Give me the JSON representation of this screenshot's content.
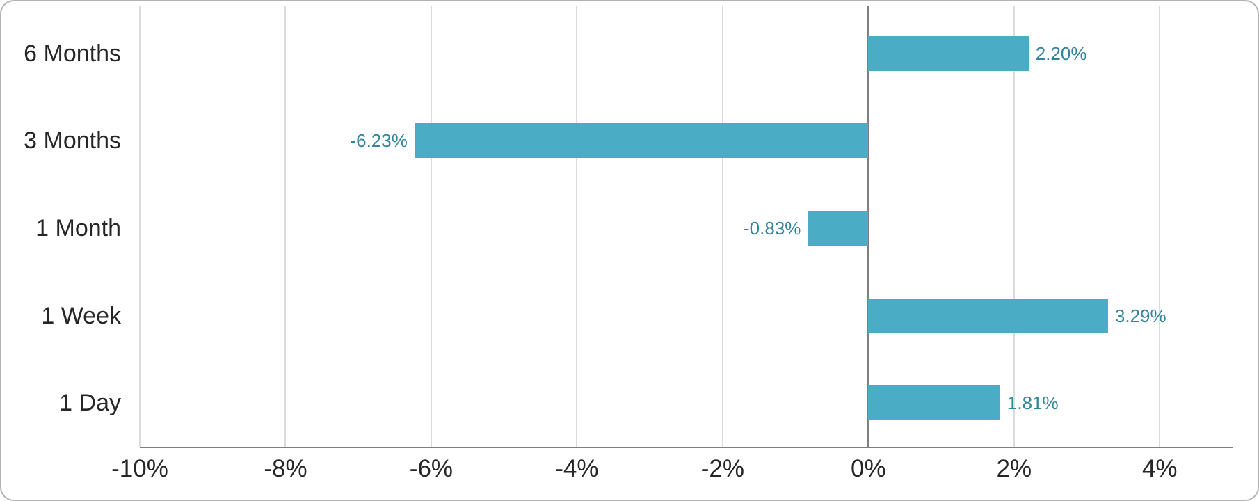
{
  "chart_data": {
    "type": "bar",
    "orientation": "horizontal",
    "title": "",
    "categories": [
      "6 Months",
      "3 Months",
      "1 Month",
      "1 Week",
      "1 Day"
    ],
    "values": [
      2.2,
      -6.23,
      -0.83,
      3.29,
      1.81
    ],
    "value_labels": [
      "2.20%",
      "-6.23%",
      "-0.83%",
      "3.29%",
      "1.81%"
    ],
    "xlabel": "",
    "ylabel": "",
    "xlim": [
      -10,
      5
    ],
    "x_ticks": [
      -10,
      -8,
      -6,
      -4,
      -2,
      0,
      2,
      4
    ],
    "x_tick_labels": [
      "-10%",
      "-8%",
      "-6%",
      "-4%",
      "-2%",
      "0%",
      "2%",
      "4%"
    ],
    "grid": "vertical-only",
    "legend": "none",
    "colors": {
      "bar": "#4BACC6",
      "value_label": "#31859B",
      "gridline": "#DBDBDB",
      "zero_line": "#7F7F7F",
      "axis_line": "#7F7F7F",
      "category_text": "#262626",
      "tick_text": "#262626",
      "card_border": "#B3B3B3",
      "background": "#FFFFFF"
    }
  }
}
